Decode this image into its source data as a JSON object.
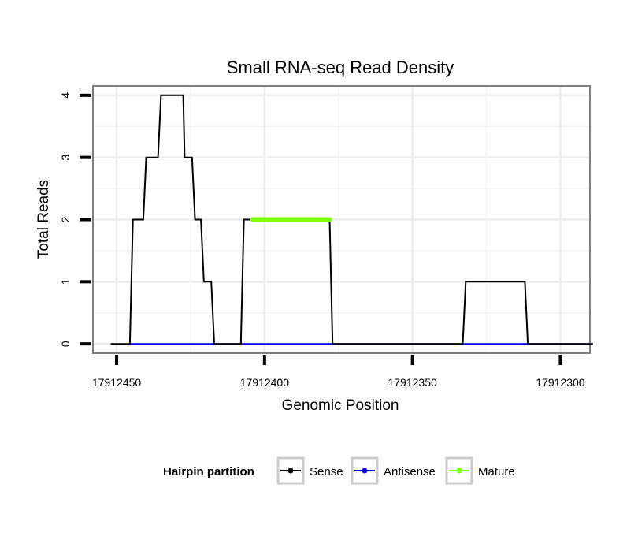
{
  "chart_data": {
    "type": "line",
    "title": "Small RNA-seq Read Density",
    "xlabel": "Genomic Position",
    "ylabel": "Total Reads",
    "x_reversed": true,
    "xlim": [
      17912458,
      17912290
    ],
    "ylim": [
      -0.15,
      4.15
    ],
    "x_ticks": [
      17912450,
      17912400,
      17912350,
      17912300
    ],
    "x_tick_labels": [
      "17912450",
      "17912400",
      "17912350",
      "17912300"
    ],
    "y_ticks": [
      0,
      1,
      2,
      3,
      4
    ],
    "y_tick_labels": [
      "0",
      "1",
      "2",
      "3",
      "4"
    ],
    "grid": true,
    "legend": {
      "title": "Hairpin partition",
      "position": "bottom",
      "entries": [
        "Sense",
        "Antisense",
        "Mature"
      ]
    },
    "series": [
      {
        "name": "Sense",
        "color": "#000000",
        "x": [
          17912452,
          17912445.5,
          17912444.5,
          17912441,
          17912440,
          17912436,
          17912435,
          17912427.5,
          17912427,
          17912424.5,
          17912423.5,
          17912421.5,
          17912420.5,
          17912418,
          17912417,
          17912408,
          17912407,
          17912403.5,
          17912403,
          17912378,
          17912377,
          17912333,
          17912332,
          17912312,
          17912311,
          17912289
        ],
        "y": [
          0,
          0,
          2,
          2,
          3,
          3,
          4,
          4,
          3,
          3,
          2,
          2,
          1,
          1,
          0,
          0,
          2,
          2,
          2,
          2,
          0,
          0,
          1,
          1,
          0,
          0
        ]
      },
      {
        "name": "Antisense",
        "color": "#0000ff",
        "x": [
          17912446,
          17912290
        ],
        "y": [
          0,
          0
        ]
      },
      {
        "name": "Mature",
        "color": "#7fff00",
        "x": [
          17912404,
          17912378
        ],
        "y": [
          2,
          2
        ]
      }
    ]
  }
}
